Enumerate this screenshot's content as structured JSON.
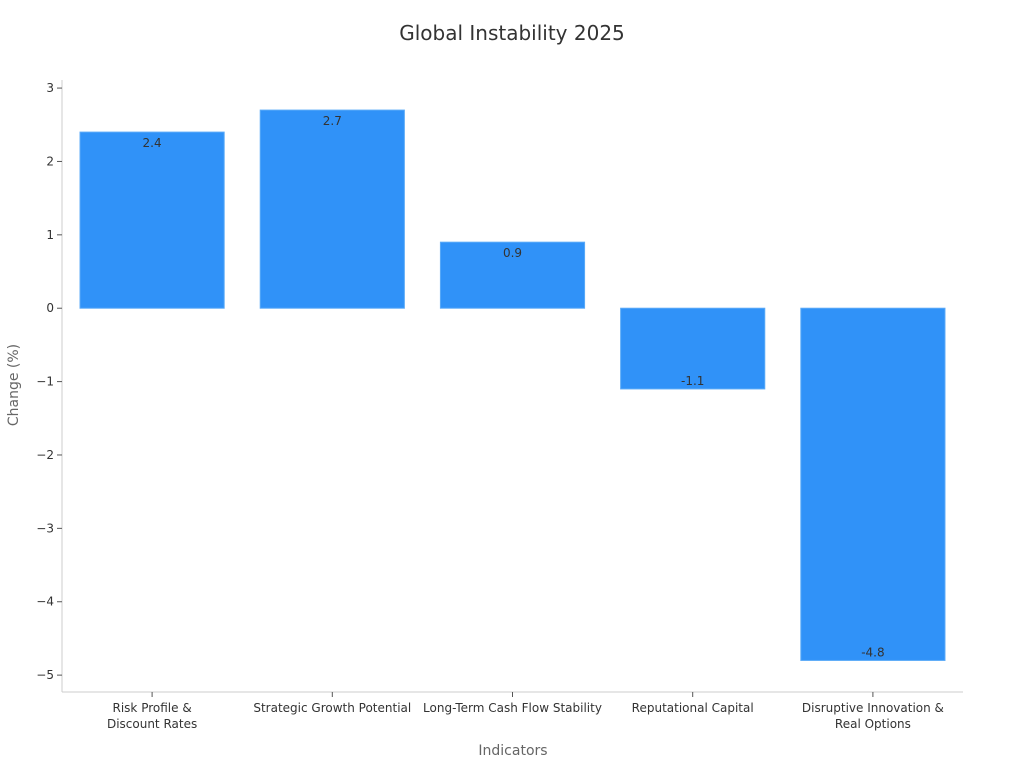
{
  "chart_data": {
    "type": "bar",
    "title": "Global Instability 2025",
    "xlabel": "Indicators",
    "ylabel": "Change (%)",
    "categories": [
      [
        "Risk Profile &",
        "Discount Rates"
      ],
      [
        "Strategic Growth Potential"
      ],
      [
        "Long-Term Cash Flow Stability"
      ],
      [
        "Reputational Capital"
      ],
      [
        "Disruptive Innovation &",
        "Real Options"
      ]
    ],
    "values": [
      2.4,
      2.7,
      0.9,
      -1.1,
      -4.8
    ],
    "data_labels": [
      "2.4",
      "2.7",
      "0.9",
      "-1.1",
      "-4.8"
    ],
    "ylim": [
      -5.23,
      3.11
    ],
    "yticks": [
      3,
      2,
      1,
      0,
      -1,
      -2,
      -3,
      -4,
      -5
    ],
    "ytick_labels": [
      "3",
      "2",
      "1",
      "0",
      "−1",
      "−2",
      "−3",
      "−4",
      "−5"
    ],
    "grid": false,
    "bar_color": "#3092F8"
  }
}
